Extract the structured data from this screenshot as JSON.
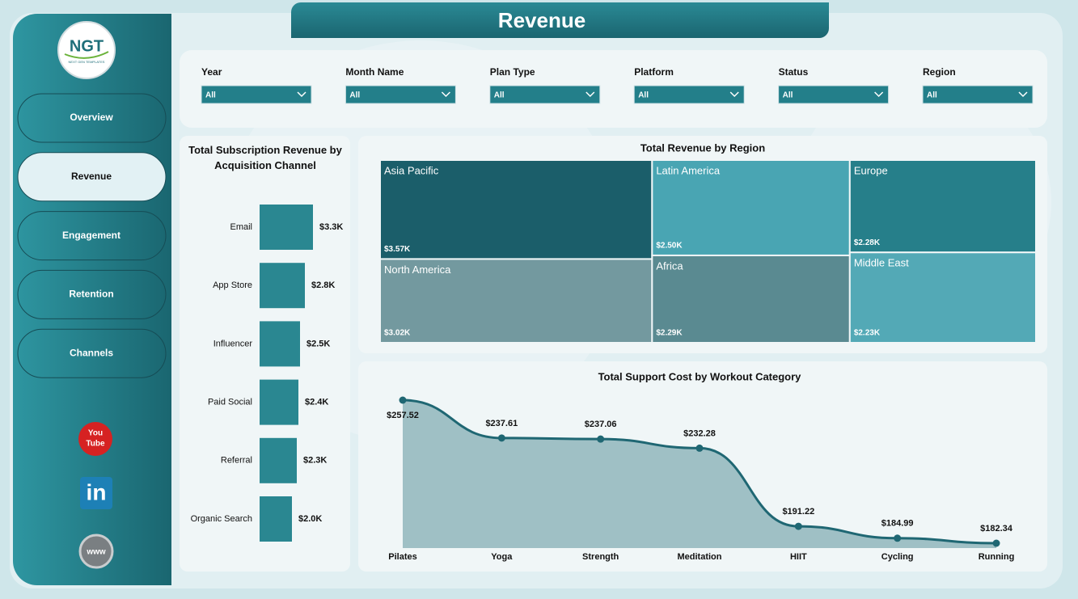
{
  "page_title": "Revenue",
  "sidebar": {
    "logo": {
      "mark": "NGT",
      "tagline": "NEXT GEN TEMPLATES"
    },
    "nav": [
      {
        "label": "Overview",
        "active": false
      },
      {
        "label": "Revenue",
        "active": true
      },
      {
        "label": "Engagement",
        "active": false
      },
      {
        "label": "Retention",
        "active": false
      },
      {
        "label": "Channels",
        "active": false
      }
    ],
    "icons": {
      "youtube": [
        "You",
        "Tube"
      ],
      "linkedin": "in",
      "web": "www"
    }
  },
  "filters": [
    {
      "label": "Year",
      "value": "All"
    },
    {
      "label": "Month Name",
      "value": "All"
    },
    {
      "label": "Plan Type",
      "value": "All"
    },
    {
      "label": "Platform",
      "value": "All"
    },
    {
      "label": "Status",
      "value": "All"
    },
    {
      "label": "Region",
      "value": "All"
    }
  ],
  "chart_data": [
    {
      "type": "bar",
      "orientation": "horizontal",
      "title": "Total Subscription Revenue by Acquisition Channel",
      "categories": [
        "Email",
        "App Store",
        "Influencer",
        "Paid Social",
        "Referral",
        "Organic Search"
      ],
      "values": [
        3.3,
        2.8,
        2.5,
        2.4,
        2.3,
        2.0
      ],
      "value_labels": [
        "$3.3K",
        "$2.8K",
        "$2.5K",
        "$2.4K",
        "$2.3K",
        "$2.0K"
      ],
      "color": "#2a8791"
    },
    {
      "type": "treemap",
      "title": "Total Revenue by Region",
      "categories": [
        "Asia Pacific",
        "North America",
        "Latin America",
        "Africa",
        "Europe",
        "Middle East"
      ],
      "values": [
        3.57,
        3.02,
        2.5,
        2.29,
        2.28,
        2.23
      ],
      "value_labels": [
        "$3.57K",
        "$3.02K",
        "$2.50K",
        "$2.29K",
        "$2.28K",
        "$2.23K"
      ],
      "colors": [
        "#1b5e6a",
        "#73999f",
        "#49a5b3",
        "#5a8a91",
        "#267f8a",
        "#53a9b6"
      ]
    },
    {
      "type": "area",
      "title": "Total Support Cost by Workout Category",
      "categories": [
        "Pilates",
        "Yoga",
        "Strength",
        "Meditation",
        "HIIT",
        "Cycling",
        "Running"
      ],
      "values": [
        257.52,
        237.61,
        237.06,
        232.28,
        191.22,
        184.99,
        182.34
      ],
      "value_labels": [
        "$257.52",
        "$237.61",
        "$237.06",
        "$232.28",
        "$191.22",
        "$184.99",
        "$182.34"
      ],
      "color": "#1f6773",
      "fill": "#9fc0c5"
    }
  ]
}
